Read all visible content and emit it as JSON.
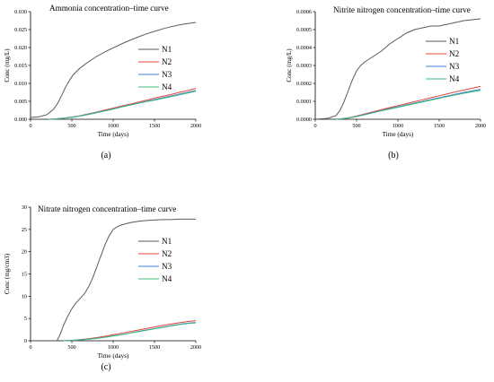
{
  "chart_data": [
    {
      "type": "line",
      "panel": "(a)",
      "title": "Ammonia concentration–time curve",
      "xlabel": "Time (days)",
      "ylabel": "Conc (mg/L)",
      "xlim": [
        0,
        2000
      ],
      "ylim": [
        0,
        0.03
      ],
      "xticks": [
        0,
        500,
        1000,
        1500,
        2000
      ],
      "yticks": [
        0.0,
        0.005,
        0.01,
        0.015,
        0.02,
        0.025,
        0.03
      ],
      "ytick_labels": [
        "0.000",
        "0.005",
        "0.010",
        "0.015",
        "0.020",
        "0.025",
        "0.030"
      ],
      "grid": false,
      "legend": "right",
      "series": [
        {
          "name": "N1",
          "color": "#5a5a5a",
          "x": [
            0,
            100,
            200,
            280,
            330,
            380,
            420,
            470,
            520,
            600,
            700,
            800,
            900,
            1000,
            1100,
            1200,
            1300,
            1400,
            1500,
            1600,
            1700,
            1800,
            1900,
            2000
          ],
          "y": [
            0.0005,
            0.0007,
            0.0013,
            0.0028,
            0.0045,
            0.0068,
            0.0088,
            0.0108,
            0.0125,
            0.0143,
            0.016,
            0.0175,
            0.0188,
            0.0199,
            0.021,
            0.022,
            0.0229,
            0.0238,
            0.0245,
            0.0252,
            0.0258,
            0.0263,
            0.0267,
            0.027
          ]
        },
        {
          "name": "N2",
          "color": "#e0463a",
          "x": [
            220,
            300,
            400,
            500,
            600,
            700,
            800,
            900,
            1000,
            1100,
            1200,
            1300,
            1400,
            1500,
            1600,
            1700,
            1800,
            1900,
            2000
          ],
          "y": [
            0.0,
            0.0001,
            0.0003,
            0.0006,
            0.001,
            0.0015,
            0.002,
            0.0026,
            0.0031,
            0.0037,
            0.0042,
            0.0048,
            0.0053,
            0.0059,
            0.0064,
            0.0069,
            0.0075,
            0.008,
            0.0086
          ]
        },
        {
          "name": "N3",
          "color": "#3f7fd6",
          "x": [
            220,
            300,
            400,
            500,
            600,
            700,
            800,
            900,
            1000,
            1100,
            1200,
            1300,
            1400,
            1500,
            1600,
            1700,
            1800,
            1900,
            2000
          ],
          "y": [
            0.0,
            0.0001,
            0.0003,
            0.0006,
            0.0009,
            0.0014,
            0.0019,
            0.0024,
            0.0029,
            0.0035,
            0.004,
            0.0045,
            0.005,
            0.0055,
            0.006,
            0.0065,
            0.007,
            0.0075,
            0.008
          ]
        },
        {
          "name": "N4",
          "color": "#3fb87a",
          "x": [
            220,
            300,
            400,
            500,
            600,
            700,
            800,
            900,
            1000,
            1100,
            1200,
            1300,
            1400,
            1500,
            1600,
            1700,
            1800,
            1900,
            2000
          ],
          "y": [
            0.0,
            0.0001,
            0.0003,
            0.0005,
            0.0009,
            0.0013,
            0.0018,
            0.0023,
            0.0028,
            0.0034,
            0.0039,
            0.0044,
            0.0049,
            0.0053,
            0.0058,
            0.0063,
            0.0068,
            0.0073,
            0.0078
          ]
        }
      ]
    },
    {
      "type": "line",
      "panel": "(b)",
      "title": "Nitrite nitrogen concentration–time curve",
      "xlabel": "Time (days)",
      "ylabel": "Conc (mg/L)",
      "xlim": [
        0,
        2000
      ],
      "ylim": [
        0,
        0.0006
      ],
      "xticks": [
        0,
        500,
        1000,
        1500,
        2000
      ],
      "yticks": [
        0.0,
        0.0001,
        0.0002,
        0.0003,
        0.0004,
        0.0005,
        0.0006
      ],
      "ytick_labels": [
        "0.0000",
        "0.0001",
        "0.0002",
        "0.0003",
        "0.0004",
        "0.0005",
        "0.0006"
      ],
      "grid": false,
      "legend": "right",
      "series": [
        {
          "name": "N1",
          "color": "#5a5a5a",
          "x": [
            0,
            150,
            250,
            300,
            350,
            400,
            450,
            500,
            550,
            600,
            700,
            800,
            900,
            1000,
            1100,
            1200,
            1300,
            1400,
            1500,
            1600,
            1700,
            1800,
            1900,
            2000
          ],
          "y": [
            0.0,
            5e-06,
            2e-05,
            5e-05,
            0.0001,
            0.00016,
            0.00022,
            0.00027,
            0.0003,
            0.00032,
            0.00035,
            0.00038,
            0.00042,
            0.00045,
            0.00048,
            0.0005,
            0.00051,
            0.00052,
            0.00052,
            0.00053,
            0.00054,
            0.00055,
            0.000555,
            0.00056
          ]
        },
        {
          "name": "N2",
          "color": "#e0463a",
          "x": [
            250,
            300,
            400,
            500,
            600,
            700,
            800,
            900,
            1000,
            1100,
            1200,
            1300,
            1400,
            1500,
            1600,
            1700,
            1800,
            1900,
            2000
          ],
          "y": [
            0.0,
            2e-06,
            8e-06,
            1.8e-05,
            3e-05,
            4.2e-05,
            5.4e-05,
            6.5e-05,
            7.6e-05,
            8.7e-05,
            9.8e-05,
            0.000109,
            0.00012,
            0.000131,
            0.000142,
            0.000153,
            0.000163,
            0.000173,
            0.000183
          ]
        },
        {
          "name": "N3",
          "color": "#3f7fd6",
          "x": [
            250,
            300,
            400,
            500,
            600,
            700,
            800,
            900,
            1000,
            1100,
            1200,
            1300,
            1400,
            1500,
            1600,
            1700,
            1800,
            1900,
            2000
          ],
          "y": [
            0.0,
            2e-06,
            7e-06,
            1.6e-05,
            2.7e-05,
            3.8e-05,
            4.9e-05,
            6e-05,
            7e-05,
            8e-05,
            9e-05,
            0.0001,
            0.00011,
            0.00012,
            0.00013,
            0.00014,
            0.00015,
            0.000158,
            0.000167
          ]
        },
        {
          "name": "N4",
          "color": "#3fb87a",
          "x": [
            250,
            300,
            400,
            500,
            600,
            700,
            800,
            900,
            1000,
            1100,
            1200,
            1300,
            1400,
            1500,
            1600,
            1700,
            1800,
            1900,
            2000
          ],
          "y": [
            0.0,
            2e-06,
            7e-06,
            1.5e-05,
            2.5e-05,
            3.6e-05,
            4.7e-05,
            5.7e-05,
            6.7e-05,
            7.7e-05,
            8.7e-05,
            9.7e-05,
            0.000107,
            0.000117,
            0.000127,
            0.000136,
            0.000145,
            0.000153,
            0.000161
          ]
        }
      ]
    },
    {
      "type": "line",
      "panel": "(c)",
      "title": "Nitrate nitrogen concentration–time curve",
      "xlabel": "Time (days)",
      "ylabel": "Conc (mg/cm3)",
      "xlim": [
        0,
        2000
      ],
      "ylim": [
        0,
        30
      ],
      "xticks": [
        0,
        500,
        1000,
        1500,
        2000
      ],
      "yticks": [
        0,
        5,
        10,
        15,
        20,
        25,
        30
      ],
      "ytick_labels": [
        "0",
        "5",
        "10",
        "15",
        "20",
        "25",
        "30"
      ],
      "grid": false,
      "legend": "right",
      "series": [
        {
          "name": "N1",
          "color": "#5a5a5a",
          "x": [
            320,
            360,
            400,
            450,
            500,
            550,
            600,
            650,
            700,
            750,
            800,
            850,
            900,
            950,
            1000,
            1050,
            1100,
            1200,
            1300,
            1400,
            1500,
            1600,
            1700,
            1800,
            1900,
            2000
          ],
          "y": [
            0,
            1.5,
            3.5,
            5.5,
            7.2,
            8.5,
            9.5,
            10.5,
            12,
            14,
            16.5,
            19,
            21.5,
            23.5,
            25,
            25.6,
            26,
            26.5,
            26.8,
            27,
            27.1,
            27.2,
            27.2,
            27.3,
            27.3,
            27.3
          ]
        },
        {
          "name": "N2",
          "color": "#e0463a",
          "x": [
            400,
            500,
            600,
            700,
            800,
            900,
            1000,
            1100,
            1200,
            1300,
            1400,
            1500,
            1600,
            1700,
            1800,
            1900,
            2000
          ],
          "y": [
            0,
            0.1,
            0.25,
            0.45,
            0.7,
            1.0,
            1.35,
            1.7,
            2.05,
            2.4,
            2.75,
            3.1,
            3.45,
            3.75,
            4.05,
            4.3,
            4.5
          ]
        },
        {
          "name": "N3",
          "color": "#3f7fd6",
          "x": [
            400,
            500,
            600,
            700,
            800,
            900,
            1000,
            1100,
            1200,
            1300,
            1400,
            1500,
            1600,
            1700,
            1800,
            1900,
            2000
          ],
          "y": [
            0,
            0.08,
            0.2,
            0.35,
            0.55,
            0.8,
            1.1,
            1.42,
            1.75,
            2.08,
            2.42,
            2.75,
            3.08,
            3.4,
            3.7,
            3.95,
            4.1
          ]
        },
        {
          "name": "N4",
          "color": "#3fb87a",
          "x": [
            400,
            500,
            600,
            700,
            800,
            900,
            1000,
            1100,
            1200,
            1300,
            1400,
            1500,
            1600,
            1700,
            1800,
            1900,
            2000
          ],
          "y": [
            0,
            0.08,
            0.2,
            0.33,
            0.52,
            0.77,
            1.05,
            1.37,
            1.7,
            2.02,
            2.35,
            2.68,
            3.0,
            3.32,
            3.62,
            3.87,
            4.0
          ]
        }
      ]
    }
  ]
}
